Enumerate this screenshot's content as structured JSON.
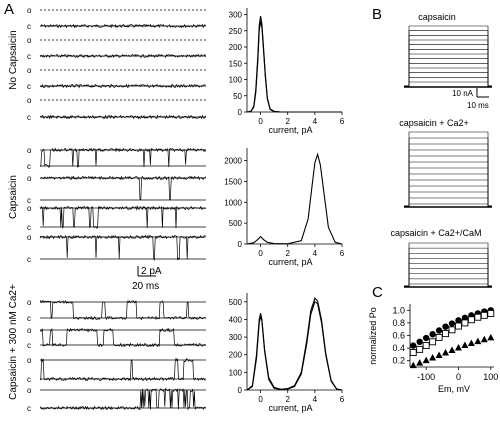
{
  "panel_labels": [
    "A",
    "B",
    "C"
  ],
  "row_labels": [
    "No Capsaicin",
    "Capsaicin",
    "Capsaicin + 300 nM Ca2+"
  ],
  "trace_level_labels": {
    "open": "o",
    "closed": "c"
  },
  "scale_bar_A": {
    "amplitude": "2 pA",
    "time": "20 ms"
  },
  "scale_bar_B": {
    "amplitude": "10 nA",
    "time": "10 ms"
  },
  "panel_b_labels": [
    "capsaicin",
    "capsaicin + Ca2+",
    "capsaicin + Ca2+/CaM"
  ],
  "chart_data": [
    {
      "type": "line",
      "title": "",
      "xlabel": "current, pA",
      "ylabel": "",
      "xlim": [
        -1,
        6
      ],
      "ylim": [
        0,
        320
      ],
      "x_ticks": [
        0,
        2,
        4,
        6
      ],
      "y_ticks": [
        0,
        50,
        100,
        150,
        200,
        250,
        300
      ],
      "x": [
        -1,
        -0.7,
        -0.5,
        -0.35,
        -0.2,
        -0.1,
        0,
        0.1,
        0.2,
        0.35,
        0.5,
        0.7,
        1,
        1.5,
        2,
        3,
        4,
        5,
        6
      ],
      "series": [
        {
          "values": [
            0,
            2,
            15,
            60,
            160,
            250,
            280,
            260,
            200,
            110,
            40,
            8,
            1,
            0,
            0,
            0,
            0,
            0,
            0
          ]
        },
        {
          "values": [
            0,
            3,
            18,
            70,
            175,
            265,
            295,
            270,
            210,
            115,
            42,
            10,
            2,
            0,
            0,
            0,
            0,
            0,
            0
          ]
        }
      ]
    },
    {
      "type": "line",
      "title": "",
      "xlabel": "current, pA",
      "ylabel": "",
      "xlim": [
        -1,
        6
      ],
      "ylim": [
        0,
        2300
      ],
      "x_ticks": [
        0,
        2,
        4,
        6
      ],
      "y_ticks": [
        0,
        500,
        1000,
        1500,
        2000
      ],
      "x": [
        -1,
        -0.5,
        -0.2,
        0,
        0.2,
        0.5,
        1,
        2,
        3,
        3.5,
        3.8,
        4,
        4.2,
        4.4,
        4.6,
        5,
        5.5,
        6
      ],
      "series": [
        {
          "values": [
            0,
            30,
            110,
            180,
            110,
            40,
            10,
            5,
            80,
            600,
            1400,
            1950,
            2150,
            1900,
            1400,
            400,
            40,
            0
          ]
        }
      ]
    },
    {
      "type": "line",
      "title": "",
      "xlabel": "current, pA",
      "ylabel": "",
      "xlim": [
        -1,
        6
      ],
      "ylim": [
        0,
        550
      ],
      "x_ticks": [
        0,
        2,
        4,
        6
      ],
      "y_ticks": [
        0,
        100,
        200,
        300,
        400,
        500
      ],
      "x": [
        -1,
        -0.6,
        -0.3,
        -0.1,
        0,
        0.1,
        0.3,
        0.6,
        1,
        1.5,
        2,
        2.5,
        3,
        3.4,
        3.7,
        4,
        4.2,
        4.5,
        4.8,
        5.2,
        5.6,
        6
      ],
      "series": [
        {
          "values": [
            0,
            20,
            180,
            380,
            420,
            390,
            220,
            60,
            10,
            2,
            5,
            20,
            90,
            260,
            430,
            500,
            490,
            380,
            200,
            50,
            5,
            0
          ]
        },
        {
          "values": [
            0,
            25,
            200,
            400,
            435,
            400,
            230,
            70,
            15,
            4,
            8,
            25,
            100,
            280,
            450,
            520,
            505,
            395,
            210,
            55,
            6,
            0
          ]
        }
      ]
    },
    {
      "type": "scatter",
      "title": "",
      "xlabel": "Em, mV",
      "ylabel": "normalized Po",
      "xlim": [
        -150,
        110
      ],
      "ylim": [
        0.1,
        1.1
      ],
      "x_ticks": [
        -100,
        0,
        100
      ],
      "y_ticks": [
        0.2,
        0.4,
        0.6,
        0.8,
        1.0
      ],
      "series": [
        {
          "marker": "filled-circle",
          "x": [
            -140,
            -120,
            -100,
            -80,
            -60,
            -40,
            -20,
            0,
            20,
            40,
            60,
            80,
            100
          ],
          "values": [
            0.44,
            0.5,
            0.56,
            0.62,
            0.68,
            0.74,
            0.79,
            0.84,
            0.88,
            0.92,
            0.95,
            0.98,
            1.0
          ]
        },
        {
          "marker": "open-square",
          "x": [
            -140,
            -120,
            -100,
            -80,
            -60,
            -40,
            -20,
            0,
            20,
            40,
            60,
            80,
            100
          ],
          "values": [
            0.33,
            0.38,
            0.44,
            0.5,
            0.57,
            0.63,
            0.69,
            0.75,
            0.8,
            0.85,
            0.89,
            0.92,
            0.95
          ]
        },
        {
          "marker": "filled-triangle",
          "x": [
            -140,
            -120,
            -100,
            -80,
            -60,
            -40,
            -20,
            0,
            20,
            40,
            60,
            80,
            100
          ],
          "values": [
            0.13,
            0.17,
            0.21,
            0.25,
            0.29,
            0.33,
            0.37,
            0.41,
            0.45,
            0.48,
            0.51,
            0.54,
            0.57
          ]
        }
      ]
    }
  ],
  "colors": {
    "ink": "#000000",
    "grey": "#666666"
  }
}
